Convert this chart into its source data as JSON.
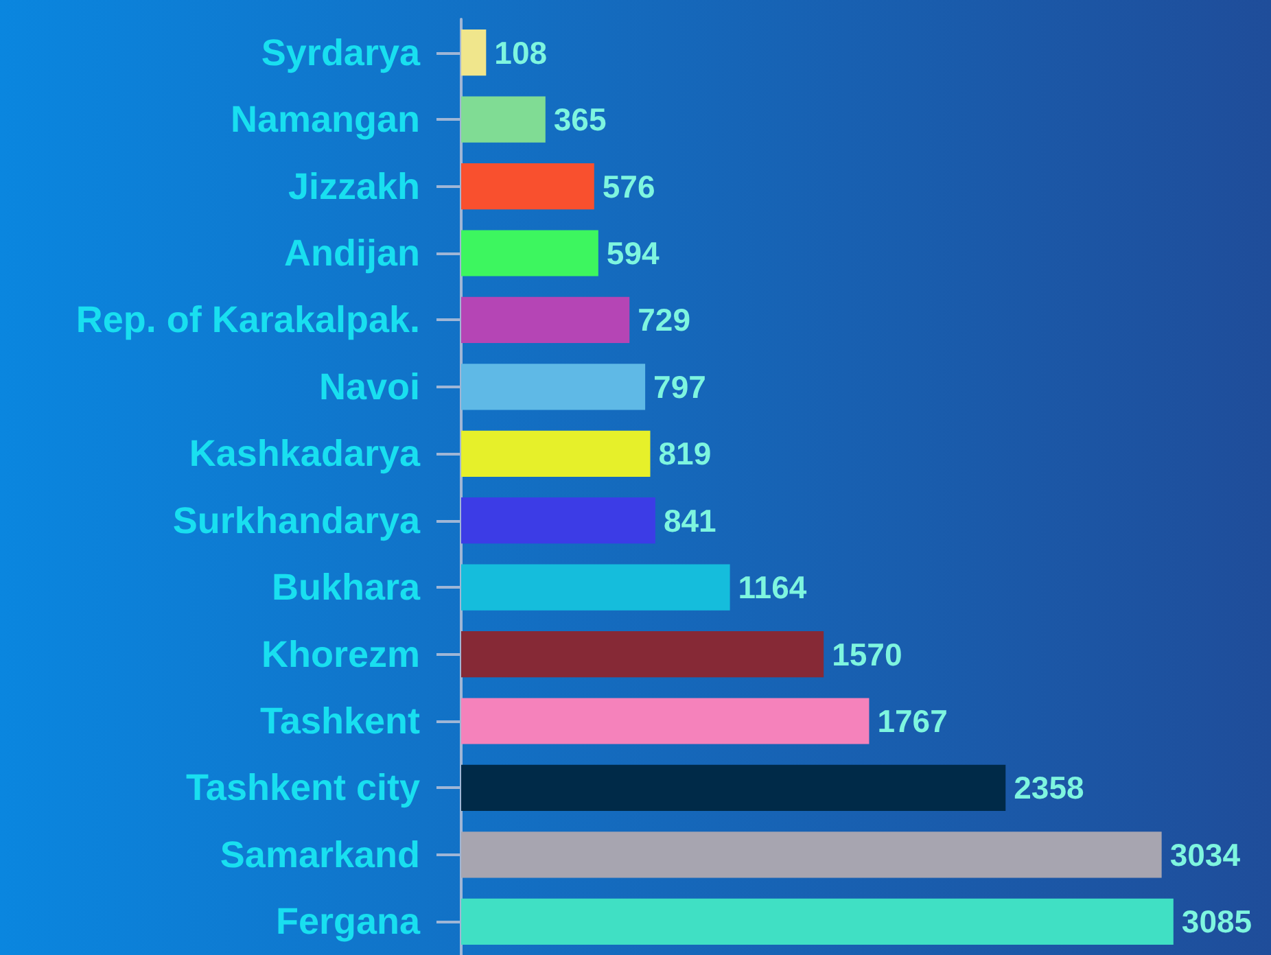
{
  "chart_data": {
    "type": "bar",
    "orientation": "horizontal",
    "data_labels": true,
    "categories": [
      "Syrdarya",
      "Namangan",
      "Jizzakh",
      "Andijan",
      "Rep. of Karakalpak.",
      "Navoi",
      "Kashkadarya",
      "Surkhandarya",
      "Bukhara",
      "Khorezm",
      "Tashkent",
      "Tashkent city",
      "Samarkand",
      "Fergana"
    ],
    "values": [
      108,
      365,
      576,
      594,
      729,
      797,
      819,
      841,
      1164,
      1570,
      1767,
      2358,
      3034,
      3085
    ],
    "colors": [
      "#f0e68c",
      "#80dc94",
      "#f9502e",
      "#3df65f",
      "#b545b5",
      "#5fb9e6",
      "#e6f02a",
      "#3c3ce6",
      "#15bddc",
      "#862936",
      "#f582bb",
      "#002a48",
      "#a7a5b0",
      "#40e0c4"
    ]
  }
}
